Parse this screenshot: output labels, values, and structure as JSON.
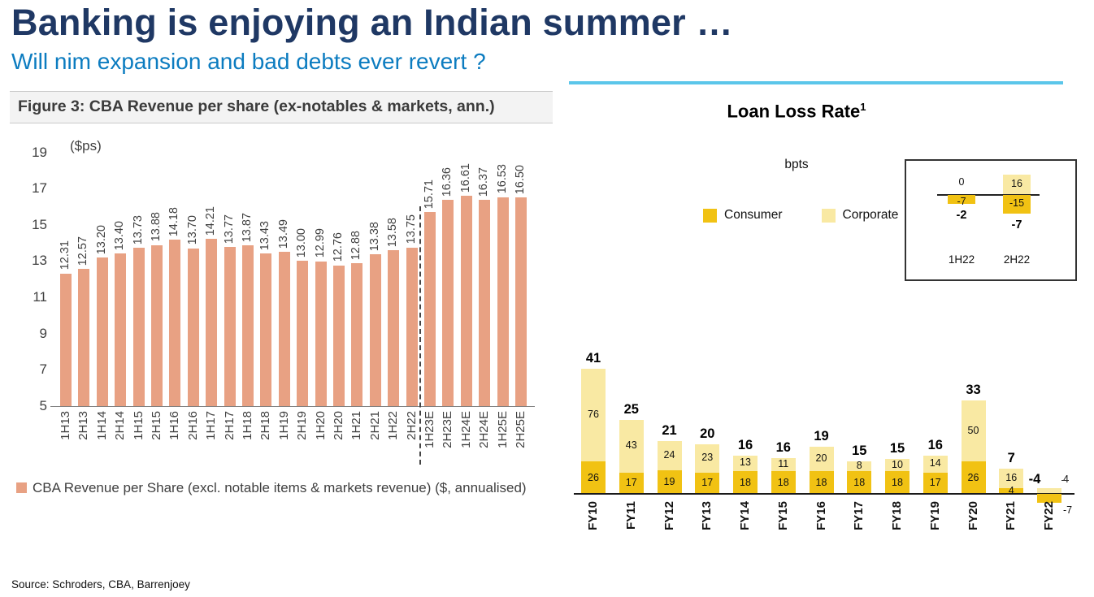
{
  "slide": {
    "title": "Banking is enjoying an Indian summer …",
    "subtitle": "Will nim expansion and bad debts ever revert ?",
    "source": "Source: Schroders, CBA, Barrenjoey",
    "title_color": "#1F3864",
    "subtitle_color": "#0C7CC0",
    "accent_rule_color": "#5BC6EA"
  },
  "chart_data": [
    {
      "type": "bar",
      "name": "cba-revenue-per-share",
      "title": "Figure 3: CBA Revenue per share (ex-notables & markets, ann.)",
      "ylabel": "($ps)",
      "ylim": [
        5,
        19
      ],
      "y_ticks": [
        19,
        17,
        15,
        13,
        11,
        9,
        7,
        5
      ],
      "categories": [
        "1H13",
        "2H13",
        "1H14",
        "2H14",
        "1H15",
        "2H15",
        "1H16",
        "2H16",
        "1H17",
        "2H17",
        "1H18",
        "2H18",
        "1H19",
        "2H19",
        "1H20",
        "2H20",
        "1H21",
        "2H21",
        "1H22",
        "2H22",
        "1H23E",
        "2H23E",
        "1H24E",
        "2H24E",
        "1H25E",
        "2H25E"
      ],
      "values": [
        12.31,
        12.57,
        13.2,
        13.4,
        13.73,
        13.88,
        14.18,
        13.7,
        14.21,
        13.77,
        13.87,
        13.43,
        13.49,
        13.0,
        12.99,
        12.76,
        12.88,
        13.38,
        13.58,
        13.75,
        15.71,
        16.36,
        16.61,
        16.37,
        16.53,
        16.5
      ],
      "forecast_divider_after": "2H22",
      "bar_color": "#E8A183",
      "legend": "CBA Revenue per Share (excl. notable items & markets revenue) ($, annualised)",
      "grid": "off",
      "legend_position": "bottom"
    },
    {
      "type": "stacked_bar",
      "name": "loan-loss-rate",
      "title": "Loan Loss Rate",
      "title_superscript": "1",
      "ylabel": "bpts",
      "categories": [
        "FY10",
        "FY11",
        "FY12",
        "FY13",
        "FY14",
        "FY15",
        "FY16",
        "FY17",
        "FY18",
        "FY19",
        "FY20",
        "FY21",
        "FY22"
      ],
      "series": [
        {
          "name": "Consumer",
          "color": "#F1C213",
          "values": [
            26,
            17,
            19,
            17,
            18,
            18,
            18,
            18,
            18,
            17,
            26,
            4,
            -7
          ]
        },
        {
          "name": "Corporate",
          "color": "#F9E9A3",
          "values": [
            76,
            43,
            24,
            23,
            13,
            11,
            20,
            8,
            10,
            14,
            50,
            16,
            4
          ]
        }
      ],
      "totals": [
        41,
        25,
        21,
        20,
        16,
        16,
        19,
        15,
        15,
        16,
        33,
        7,
        -4
      ],
      "legend_position": "top",
      "inset": {
        "columns": [
          {
            "label": "1H22",
            "corporate": 0,
            "consumer": -7,
            "total": -2
          },
          {
            "label": "2H22",
            "corporate": 16,
            "consumer": -15,
            "total": -7
          }
        ]
      }
    }
  ]
}
